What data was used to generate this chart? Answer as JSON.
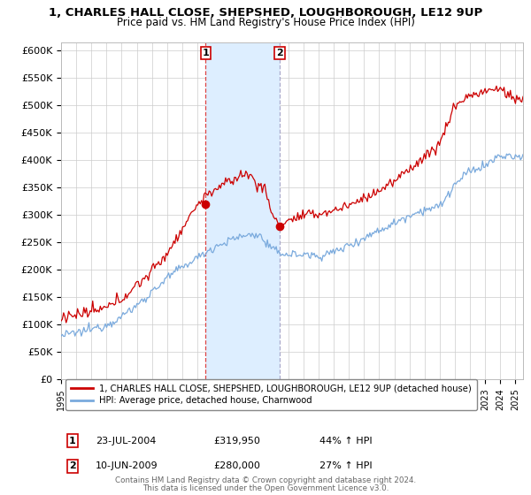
{
  "title": "1, CHARLES HALL CLOSE, SHEPSHED, LOUGHBOROUGH, LE12 9UP",
  "subtitle": "Price paid vs. HM Land Registry's House Price Index (HPI)",
  "ylabel_ticks": [
    "£0",
    "£50K",
    "£100K",
    "£150K",
    "£200K",
    "£250K",
    "£300K",
    "£350K",
    "£400K",
    "£450K",
    "£500K",
    "£550K",
    "£600K"
  ],
  "ytick_values": [
    0,
    50000,
    100000,
    150000,
    200000,
    250000,
    300000,
    350000,
    400000,
    450000,
    500000,
    550000,
    600000
  ],
  "ylim": [
    0,
    615000
  ],
  "xlim_start": 1995.0,
  "xlim_end": 2025.5,
  "purchase1_x": 2004.55,
  "purchase1_y": 319950,
  "purchase2_x": 2009.44,
  "purchase2_y": 280000,
  "legend_line1": "1, CHARLES HALL CLOSE, SHEPSHED, LOUGHBOROUGH, LE12 9UP (detached house)",
  "legend_line2": "HPI: Average price, detached house, Charnwood",
  "footer": "Contains HM Land Registry data © Crown copyright and database right 2024.\nThis data is licensed under the Open Government Licence v3.0.",
  "line_color_red": "#cc0000",
  "line_color_blue": "#7aaadd",
  "shaded_color": "#ddeeff",
  "vline1_color": "#dd4444",
  "vline2_color": "#aaaacc",
  "background_color": "#ffffff",
  "grid_color": "#cccccc"
}
